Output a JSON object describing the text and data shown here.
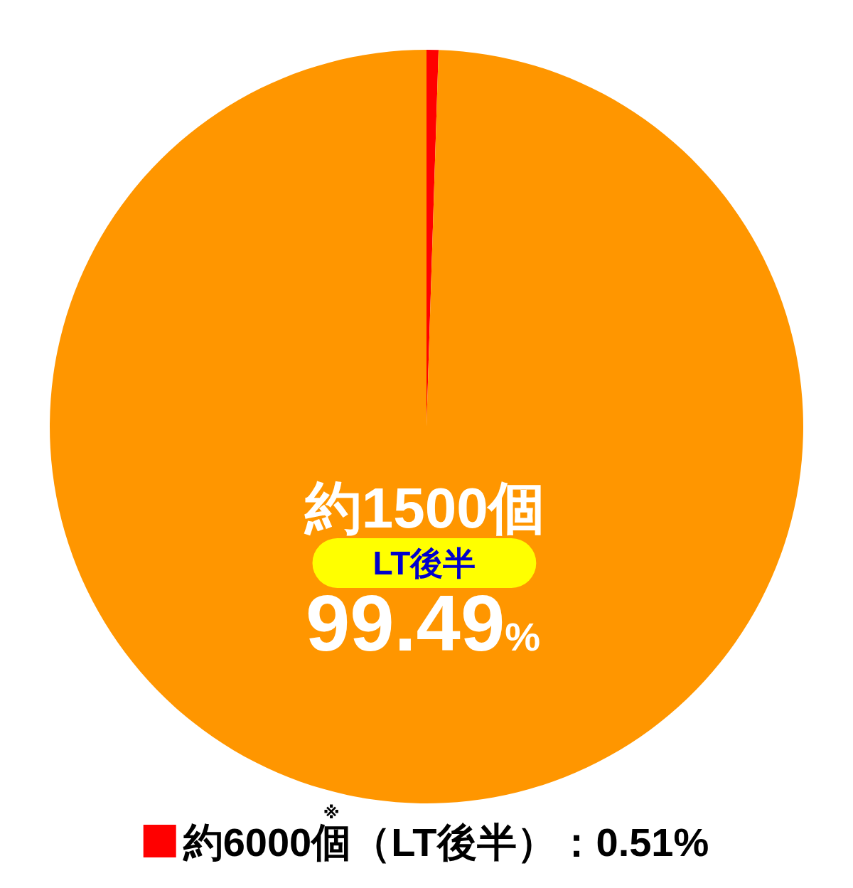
{
  "chart_data": {
    "type": "pie",
    "categories": [
      "約6000個$^{※}$（LT後半）：0.51%",
      "約1500個"
    ],
    "values": [
      0.51,
      99.49
    ],
    "colors": [
      "#ff0000",
      "#ff9600"
    ],
    "value_labels": [
      null,
      "99.49%"
    ],
    "annotations": [
      "LT後半"
    ],
    "legend": "bottom"
  }
}
